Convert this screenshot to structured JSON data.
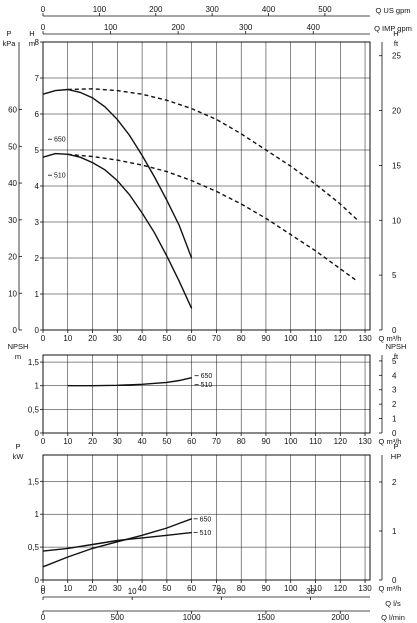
{
  "chart_data": [
    {
      "type": "line",
      "panel": "head",
      "top_axes": [
        {
          "label": "Q US gpm",
          "ticks": [
            "0",
            "100",
            "200",
            "300",
            "400",
            "500"
          ],
          "range": [
            0,
            580
          ]
        },
        {
          "label": "Q IMP gpm",
          "ticks": [
            "0",
            "100",
            "200",
            "300",
            "400"
          ],
          "range": [
            0,
            484
          ]
        }
      ],
      "xlabel": "Q m³/h",
      "x_ticks": [
        "0",
        "10",
        "20",
        "30",
        "40",
        "50",
        "60",
        "70",
        "80",
        "90",
        "100",
        "110",
        "120",
        "130"
      ],
      "xlim": [
        0,
        132
      ],
      "y_axes": [
        {
          "label": "P kPa",
          "ticks": [
            "0",
            "10",
            "20",
            "30",
            "40",
            "50",
            "60"
          ],
          "range": [
            0,
            78.4
          ]
        },
        {
          "label": "H m",
          "ticks": [
            "0",
            "1",
            "2",
            "3",
            "4",
            "5",
            "6",
            "7",
            "8"
          ],
          "range": [
            0,
            8
          ]
        },
        {
          "label": "H ft",
          "ticks": [
            "0",
            "5",
            "10",
            "15",
            "20",
            "25"
          ],
          "range": [
            0,
            26.25
          ]
        }
      ],
      "series": [
        {
          "name": "650",
          "style": "solid",
          "x": [
            0,
            5,
            10,
            15,
            20,
            25,
            30,
            35,
            40,
            45,
            50,
            55,
            60
          ],
          "y": [
            6.55,
            6.65,
            6.68,
            6.6,
            6.45,
            6.2,
            5.85,
            5.4,
            4.85,
            4.25,
            3.6,
            2.9,
            2.0
          ]
        },
        {
          "name": "650",
          "style": "dashed",
          "x": [
            10,
            20,
            30,
            40,
            50,
            60,
            70,
            80,
            90,
            100,
            110,
            120,
            127
          ],
          "y": [
            6.68,
            6.7,
            6.65,
            6.55,
            6.38,
            6.15,
            5.85,
            5.45,
            5.0,
            4.55,
            4.05,
            3.5,
            3.05
          ]
        },
        {
          "name": "510",
          "style": "solid",
          "x": [
            0,
            5,
            10,
            15,
            20,
            25,
            30,
            35,
            40,
            45,
            50,
            55,
            60
          ],
          "y": [
            4.8,
            4.9,
            4.88,
            4.8,
            4.65,
            4.45,
            4.15,
            3.75,
            3.25,
            2.7,
            2.05,
            1.35,
            0.6
          ]
        },
        {
          "name": "510",
          "style": "dashed",
          "x": [
            10,
            20,
            30,
            40,
            50,
            60,
            70,
            80,
            90,
            100,
            110,
            120,
            127
          ],
          "y": [
            4.88,
            4.82,
            4.72,
            4.58,
            4.4,
            4.15,
            3.85,
            3.5,
            3.1,
            2.65,
            2.2,
            1.7,
            1.35
          ]
        }
      ],
      "grid": true
    },
    {
      "type": "line",
      "panel": "npsh",
      "xlabel": "Q m³/h",
      "x_ticks": [
        "0",
        "10",
        "20",
        "30",
        "40",
        "50",
        "60",
        "70",
        "80",
        "90",
        "100",
        "110",
        "120",
        "130"
      ],
      "xlim": [
        0,
        132
      ],
      "y_axes": [
        {
          "label": "NPSH m",
          "ticks": [
            "0",
            "0,5",
            "1",
            "1,5"
          ],
          "range": [
            0,
            1.65
          ]
        },
        {
          "label": "NPSH ft",
          "ticks": [
            "0",
            "1",
            "2",
            "3",
            "4",
            "5"
          ],
          "range": [
            0,
            5.41
          ]
        }
      ],
      "series": [
        {
          "name": "650 / 510",
          "style": "solid",
          "x": [
            10,
            20,
            30,
            40,
            50,
            55,
            60
          ],
          "y": [
            1.0,
            1.0,
            1.01,
            1.03,
            1.07,
            1.11,
            1.17
          ]
        }
      ],
      "grid": true
    },
    {
      "type": "line",
      "panel": "power",
      "xlabel": "Q m³/h",
      "x_ticks": [
        "0",
        "10",
        "20",
        "30",
        "40",
        "50",
        "60",
        "70",
        "80",
        "90",
        "100",
        "110",
        "120",
        "130"
      ],
      "xlim": [
        0,
        132
      ],
      "bottom_axes": [
        {
          "label": "Q l/s",
          "ticks": [
            "0",
            "10",
            "20",
            "30"
          ],
          "range": [
            0,
            36.67
          ]
        },
        {
          "label": "Q l/min",
          "ticks": [
            "0",
            "500",
            "1000",
            "1500",
            "2000"
          ],
          "range": [
            0,
            2200
          ]
        }
      ],
      "y_axes": [
        {
          "label": "P kW",
          "ticks": [
            "0",
            "0,5",
            "1",
            "1,5"
          ],
          "range": [
            0,
            1.9
          ]
        },
        {
          "label": "P HP",
          "ticks": [
            "0",
            "1",
            "2"
          ],
          "range": [
            0,
            2.55
          ]
        }
      ],
      "series": [
        {
          "name": "650",
          "style": "solid",
          "x": [
            0,
            10,
            20,
            30,
            40,
            50,
            55,
            60
          ],
          "y": [
            0.2,
            0.35,
            0.48,
            0.58,
            0.68,
            0.79,
            0.86,
            0.93
          ]
        },
        {
          "name": "510",
          "style": "solid",
          "x": [
            0,
            10,
            20,
            30,
            40,
            50,
            55,
            60
          ],
          "y": [
            0.44,
            0.48,
            0.54,
            0.6,
            0.64,
            0.68,
            0.7,
            0.72
          ]
        }
      ],
      "grid": true
    }
  ]
}
